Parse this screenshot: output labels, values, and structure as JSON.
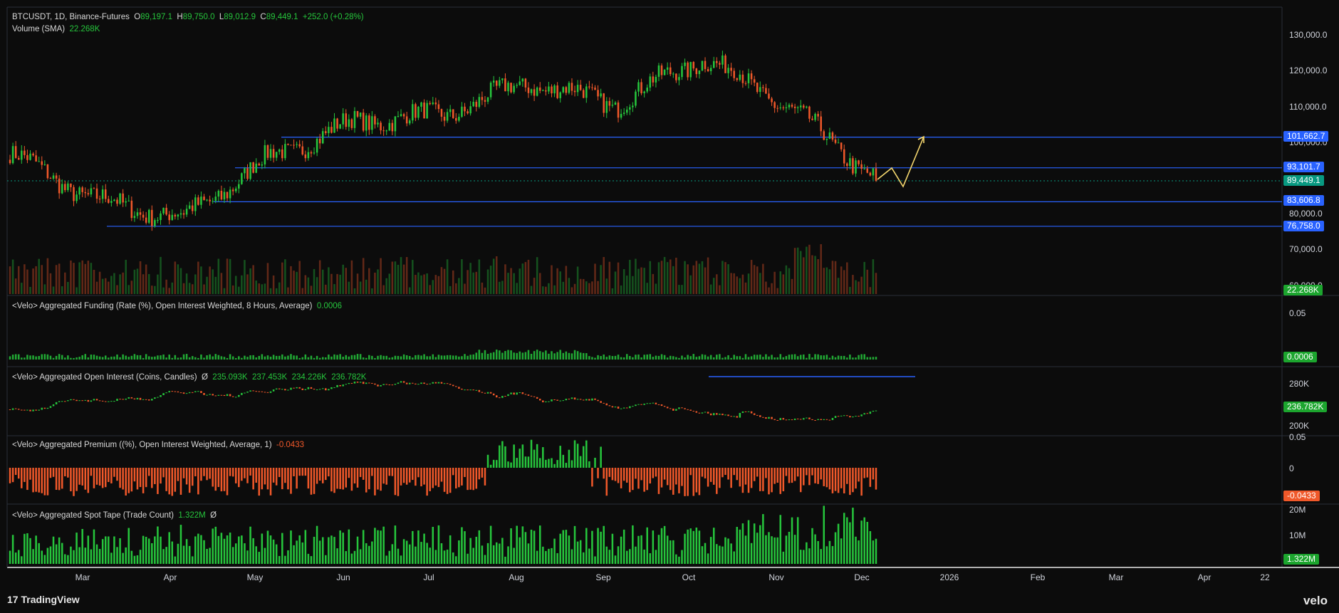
{
  "header": {
    "symbol": "BTCUSDT, 1D, Binance-Futures",
    "o_label": "O",
    "o_value": "89,197.1",
    "h_label": "H",
    "h_value": "89,750.0",
    "l_label": "L",
    "l_value": "89,012.9",
    "c_label": "C",
    "c_value": "89,449.1",
    "change": "+252.0 (+0.28%)"
  },
  "volume": {
    "label": "Volume (SMA)",
    "value": "22.268K"
  },
  "panes": {
    "funding": {
      "label": "<Velo> Aggregated Funding (Rate (%), Open Interest Weighted, 8 Hours, Average)",
      "value": "0.0006",
      "axis_top": "0.05",
      "badge": "0.0006"
    },
    "oi": {
      "label": "<Velo> Aggregated Open Interest (Coins, Candles)",
      "symbol": "Ø",
      "o": "235.093K",
      "h": "237.453K",
      "l": "234.226K",
      "c": "236.782K",
      "axis_top": "280K",
      "axis_bottom": "200K",
      "badge": "236.782K"
    },
    "premium": {
      "label": "<Velo> Aggregated Premium ((%), Open Interest Weighted, Average, 1)",
      "value": "-0.0433",
      "axis_top": "0.05",
      "axis_zero": "0",
      "badge": "-0.0433"
    },
    "spot": {
      "label": "<Velo> Aggregated Spot Tape (Trade Count)",
      "value": "1.322M",
      "symbol": "Ø",
      "axis_top": "20M",
      "axis_mid": "10M",
      "badge": "1.322M"
    }
  },
  "price_axis": {
    "ticks": [
      "130,000.0",
      "120,000.0",
      "110,000.0",
      "100,000.0",
      "80,000.0",
      "70,000.0",
      "60,000.0"
    ],
    "levels": [
      {
        "value": 101662.7,
        "label": "101,662.7",
        "color": "#2962ff"
      },
      {
        "value": 93101.7,
        "label": "93,101.7",
        "color": "#2962ff"
      },
      {
        "value": 89449.1,
        "label": "89,449.1",
        "color": "#089981"
      },
      {
        "value": 83606.8,
        "label": "83,606.8",
        "color": "#2962ff"
      },
      {
        "value": 76758.0,
        "label": "76,758.0",
        "color": "#2962ff"
      }
    ],
    "volume_badge": "22.268K"
  },
  "time_axis": [
    "Mar",
    "Apr",
    "May",
    "Jun",
    "Jul",
    "Aug",
    "Sep",
    "Oct",
    "Nov",
    "Dec",
    "2026",
    "Feb",
    "Mar",
    "Apr",
    "22"
  ],
  "footer": {
    "brand": "TradingView",
    "velo": "velo"
  },
  "colors": {
    "up": "#26c53c",
    "down": "#f0582a",
    "line": "#2962ff",
    "projection": "#f5d76e"
  },
  "chart_data": {
    "type": "candlestick",
    "symbol": "BTCUSDT",
    "interval": "1D",
    "price_anchors": [
      {
        "month": "Feb",
        "price": 97000
      },
      {
        "month": "Mar",
        "price": 84000
      },
      {
        "month": "Apr",
        "price": 79000
      },
      {
        "month": "May",
        "price": 96000
      },
      {
        "month": "Jun",
        "price": 106000
      },
      {
        "month": "Jul",
        "price": 108000
      },
      {
        "month": "Aug",
        "price": 117000
      },
      {
        "month": "Sep",
        "price": 111000
      },
      {
        "month": "Oct",
        "price": 124000
      },
      {
        "month": "Nov",
        "price": 110000
      },
      {
        "month": "Dec",
        "price": 90000
      }
    ],
    "horizontal_levels": [
      101662.7,
      93101.7,
      83606.8,
      76758.0
    ],
    "last_price": 89449.1
  }
}
